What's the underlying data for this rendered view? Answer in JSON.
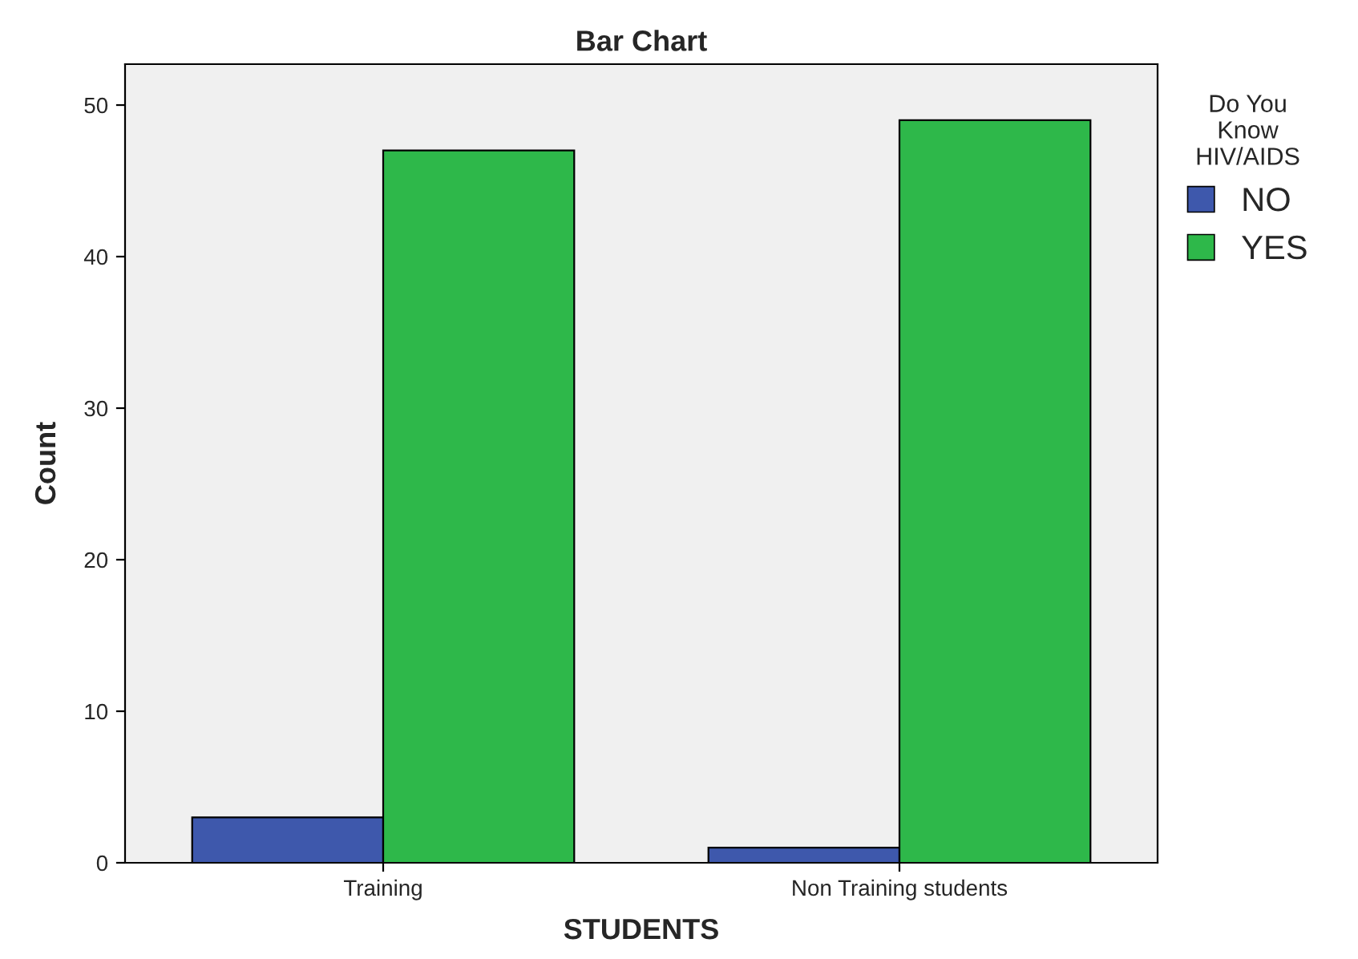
{
  "chart_data": {
    "type": "bar",
    "title": "Bar Chart",
    "xlabel": "STUDENTS",
    "ylabel": "Count",
    "legend_title": "Do You\nKnow\nHIV/AIDS",
    "categories": [
      "Training",
      "Non Training students"
    ],
    "series": [
      {
        "name": "NO",
        "color": "#3e58ac",
        "values": [
          3,
          1
        ]
      },
      {
        "name": "YES",
        "color": "#2eb84a",
        "values": [
          47,
          49
        ]
      }
    ],
    "ylim": [
      0,
      52.7
    ],
    "yticks": [
      0,
      10,
      20,
      30,
      40,
      50
    ],
    "grid": false,
    "legend": "right"
  }
}
